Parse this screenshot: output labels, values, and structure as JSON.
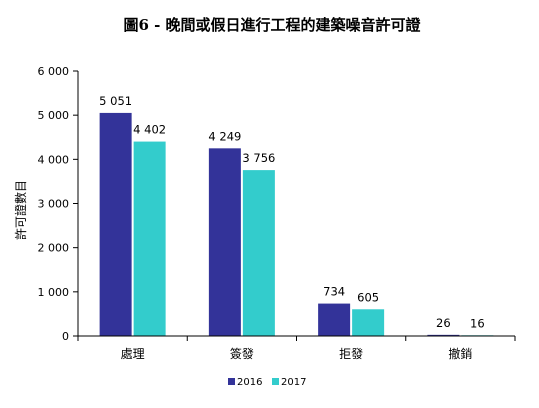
{
  "chart_data": {
    "type": "bar",
    "title": "圖6 - 晚間或假日進行工程的建築噪音許可證",
    "ylabel": "許可證數目",
    "xlabel": "",
    "categories": [
      "處理",
      "簽發",
      "拒發",
      "撤銷"
    ],
    "series": [
      {
        "name": "2016",
        "values": [
          5051,
          4249,
          734,
          26
        ],
        "labels": [
          "5 051",
          "4 249",
          "734",
          "26"
        ],
        "color": "#333399"
      },
      {
        "name": "2017",
        "values": [
          4402,
          3756,
          605,
          16
        ],
        "labels": [
          "4 402",
          "3 756",
          "605",
          "16"
        ],
        "color": "#33CCCC"
      }
    ],
    "ylim": [
      0,
      6000
    ],
    "yticks": [
      {
        "value": 0,
        "label": "0"
      },
      {
        "value": 1000,
        "label": "1 000"
      },
      {
        "value": 2000,
        "label": "2 000"
      },
      {
        "value": 3000,
        "label": "3 000"
      },
      {
        "value": 4000,
        "label": "4 000"
      },
      {
        "value": 5000,
        "label": "5 000"
      },
      {
        "value": 6000,
        "label": "6 000"
      }
    ],
    "grid": false,
    "legend": "bottom-center"
  }
}
